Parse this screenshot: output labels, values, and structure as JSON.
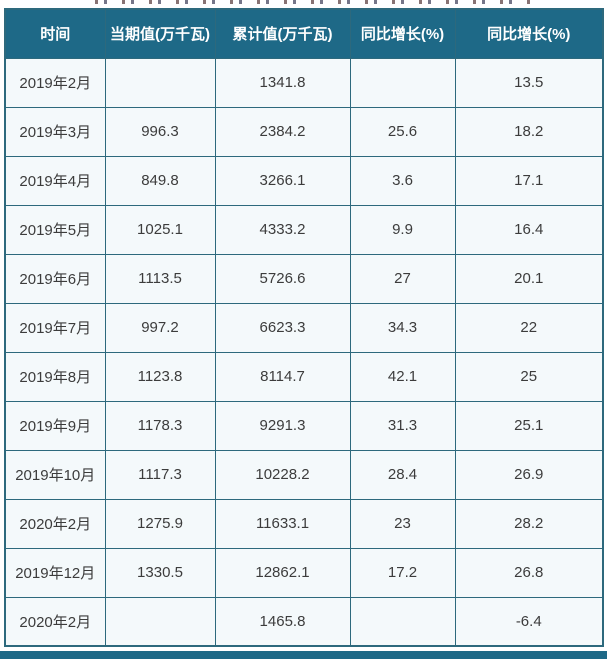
{
  "chart_data": {
    "type": "table",
    "columns": [
      "时间",
      "当期值(万千瓦)",
      "累计值(万千瓦)",
      "同比增长(%)",
      "同比增长(%)"
    ],
    "rows": [
      [
        "2019年2月",
        "",
        "1341.8",
        "",
        "13.5"
      ],
      [
        "2019年3月",
        "996.3",
        "2384.2",
        "25.6",
        "18.2"
      ],
      [
        "2019年4月",
        "849.8",
        "3266.1",
        "3.6",
        "17.1"
      ],
      [
        "2019年5月",
        "1025.1",
        "4333.2",
        "9.9",
        "16.4"
      ],
      [
        "2019年6月",
        "1113.5",
        "5726.6",
        "27",
        "20.1"
      ],
      [
        "2019年7月",
        "997.2",
        "6623.3",
        "34.3",
        "22"
      ],
      [
        "2019年8月",
        "1123.8",
        "8114.7",
        "42.1",
        "25"
      ],
      [
        "2019年9月",
        "1178.3",
        "9291.3",
        "31.3",
        "25.1"
      ],
      [
        "2019年10月",
        "1117.3",
        "10228.2",
        "28.4",
        "26.9"
      ],
      [
        "2020年2月",
        "1275.9",
        "11633.1",
        "23",
        "28.2"
      ],
      [
        "2019年12月",
        "1330.5",
        "12862.1",
        "17.2",
        "26.8"
      ],
      [
        "2020年2月",
        "",
        "1465.8",
        "",
        "-6.4"
      ]
    ]
  },
  "colors": {
    "header_bg": "#1e6987",
    "border": "#2d697d",
    "cell_bg": "#f4f9fb",
    "header_text": "#ffffff",
    "cell_text": "#3c3c3c",
    "footer_bg": "#1e6987"
  }
}
